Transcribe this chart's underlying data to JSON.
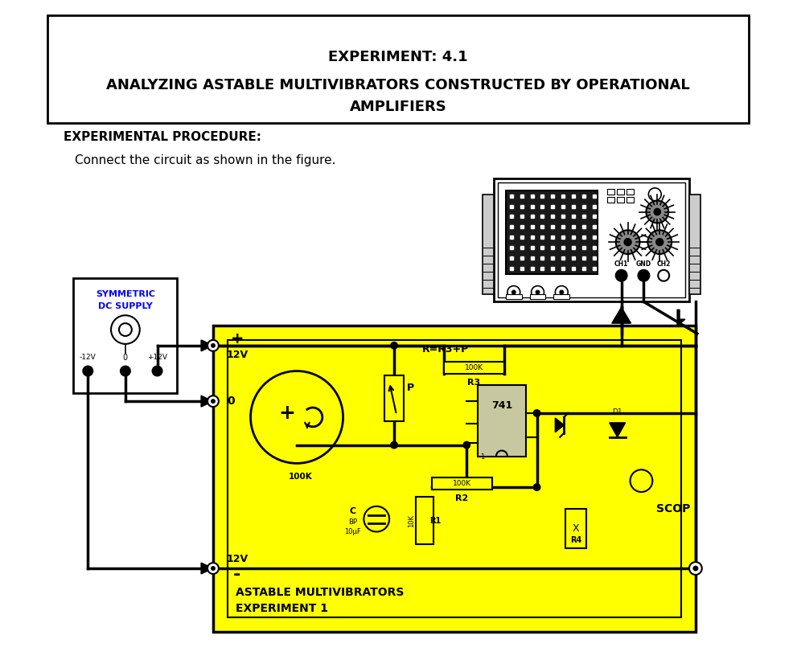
{
  "title1": "EXPERIMENT: 4.1",
  "title2": "ANALYZING ASTABLE MULTIVIBRATORS CONSTRUCTED BY OPERATIONAL",
  "title3": "AMPLIFIERS",
  "section": "EXPERIMENTAL PROCEDURE:",
  "instruction": "Connect the circuit as shown in the figure.",
  "exp_label1": "EXPERIMENT 1",
  "exp_label2": "ASTABLE MULTIVIBRATORS",
  "bg_color": "#ffffff",
  "yellow": "#FFFF00",
  "black": "#000000",
  "fig_width": 9.91,
  "fig_height": 8.31
}
